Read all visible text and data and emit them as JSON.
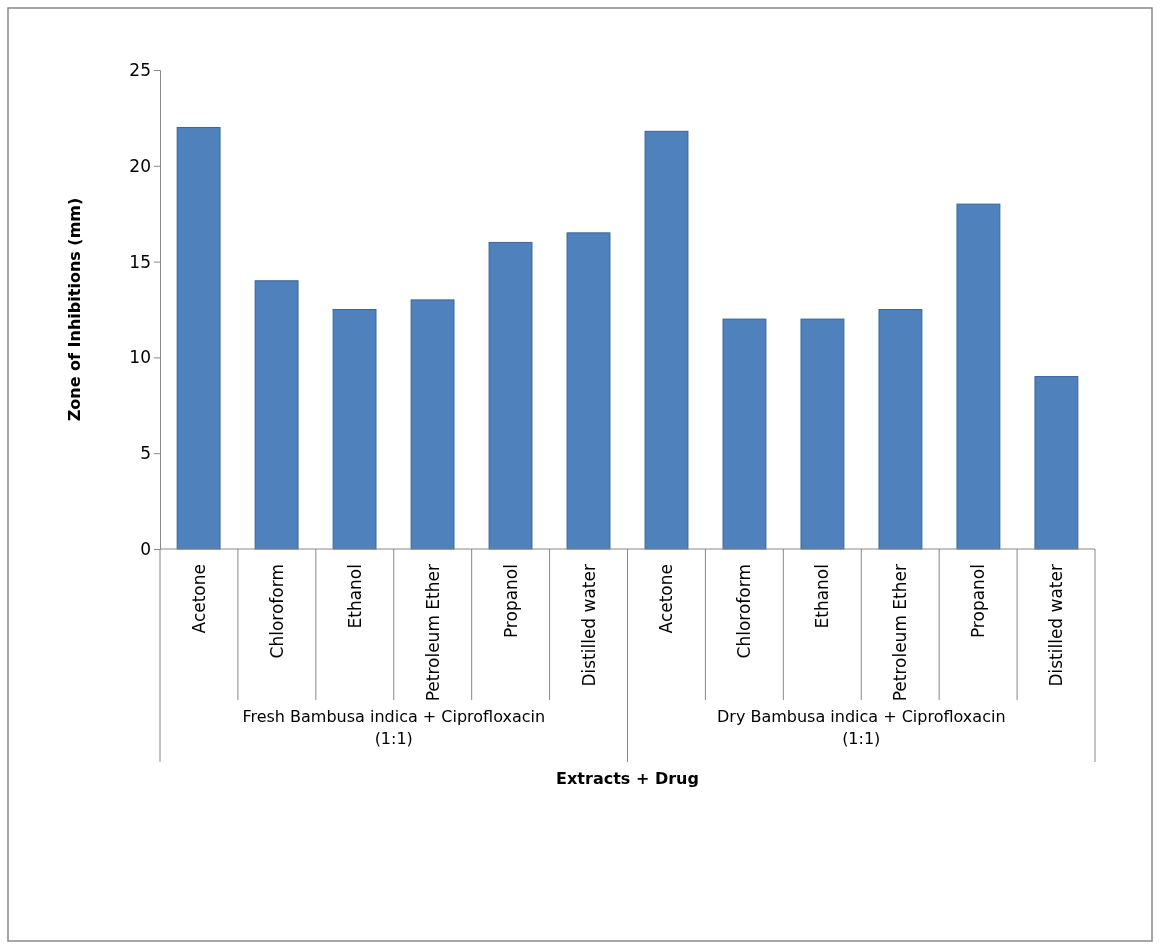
{
  "chart_data": {
    "type": "bar",
    "xlabel": "Extracts + Drug",
    "ylabel": "Zone of Inhibitions (mm)",
    "categories": [
      "Acetone",
      "Chloroform",
      "Ethanol",
      "Petroleum Ether",
      "Propanol",
      "Distilled water",
      "Acetone",
      "Chloroform",
      "Ethanol",
      "Petroleum Ether",
      "Propanol",
      "Distilled water"
    ],
    "values": [
      22,
      14,
      12.5,
      13,
      16,
      16.5,
      21.8,
      12,
      12,
      12.5,
      18,
      9
    ],
    "color": "#4f81bd",
    "ylim": [
      0,
      25
    ],
    "yticks": [
      0,
      5,
      10,
      15,
      20,
      25
    ],
    "grid": false,
    "annotations": [
      "Fresh Bambusa indica + Ciprofloxacin (1:1)",
      "Dry Bambusa indica + Ciprofloxacin (1:1)"
    ]
  }
}
